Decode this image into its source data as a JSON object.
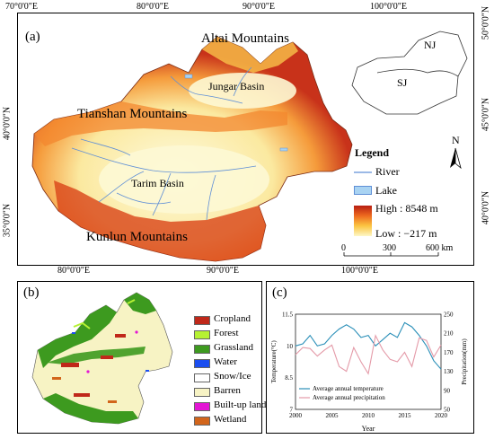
{
  "top_ticks": [
    "70°0'0\"E",
    "80°0'0\"E",
    "90°0'0\"E",
    "100°0'0\"E"
  ],
  "bottom_ticks": [
    "80°0'0\"E",
    "90°0'0\"E",
    "100°0'0\"E"
  ],
  "left_ticks": [
    "40°0'0\"N",
    "35°0'0\"N"
  ],
  "right_ticks": [
    "50°0'0\"N",
    "45°0'0\"N",
    "40°0'0\"N"
  ],
  "panel_a": {
    "label": "(a)",
    "places": {
      "altai": "Altai Mountains",
      "jungar": "Jungar Basin",
      "tianshan": "Tianshan Mountains",
      "tarim": "Tarim Basin",
      "kunlun": "Kunlun Mountains"
    },
    "inset": {
      "nj": "NJ",
      "sj": "SJ"
    },
    "north": "N",
    "legend": {
      "title": "Legend",
      "river": "River",
      "lake": "Lake",
      "high": "High : 8548 m",
      "low": "Low : −217 m"
    },
    "scale": {
      "t0": "0",
      "t1": "300",
      "t2": "600 km"
    },
    "colors": {
      "river": "#5f8fd6",
      "lake": "#a9d3f2",
      "high": "#b71e11",
      "low": "#fdf7c6"
    }
  },
  "panel_b": {
    "label": "(b)",
    "classes": [
      {
        "name": "Cropland",
        "color": "#c0281a"
      },
      {
        "name": "Forest",
        "color": "#b6f233"
      },
      {
        "name": "Grassland",
        "color": "#3d9a1f"
      },
      {
        "name": "Water",
        "color": "#1b4ef0"
      },
      {
        "name": "Snow/Ice",
        "color": "#ffffff"
      },
      {
        "name": "Barren",
        "color": "#f7f3c4"
      },
      {
        "name": "Built-up land",
        "color": "#e316d4"
      },
      {
        "name": "Wetland",
        "color": "#d2651b"
      }
    ]
  },
  "panel_c": {
    "label": "(c)",
    "chart_data": {
      "type": "line",
      "xlabel": "Year",
      "ylabel_left": "Temperature(°C)",
      "ylabel_right": "Precipitation(mm)",
      "xlim": [
        2000,
        2020
      ],
      "ylim_left": [
        7,
        11.5
      ],
      "ylim_right": [
        50,
        250
      ],
      "x_ticks": [
        "2000",
        "2005",
        "2010",
        "2015",
        "2020"
      ],
      "y_left_ticks": [
        "7",
        "8.5",
        "10",
        "11.5"
      ],
      "y_right_ticks": [
        "50",
        "90",
        "130",
        "170",
        "210",
        "250"
      ],
      "x": [
        2000,
        2001,
        2002,
        2003,
        2004,
        2005,
        2006,
        2007,
        2008,
        2009,
        2010,
        2011,
        2012,
        2013,
        2014,
        2015,
        2016,
        2017,
        2018,
        2019,
        2020
      ],
      "series": [
        {
          "name": "Average annual temperature",
          "axis": "left",
          "color": "#2a8fb8",
          "values": [
            10.0,
            10.1,
            10.5,
            10.0,
            10.1,
            10.5,
            10.8,
            11.0,
            10.8,
            10.4,
            10.5,
            10.0,
            10.3,
            10.6,
            10.4,
            11.1,
            10.9,
            10.5,
            10.0,
            9.3,
            8.9
          ]
        },
        {
          "name": "Average annual precipitation",
          "axis": "right",
          "color": "#e49aa8",
          "values": [
            165,
            180,
            178,
            162,
            175,
            185,
            140,
            130,
            180,
            150,
            125,
            205,
            175,
            155,
            150,
            170,
            140,
            200,
            195,
            160,
            185
          ]
        }
      ]
    }
  }
}
